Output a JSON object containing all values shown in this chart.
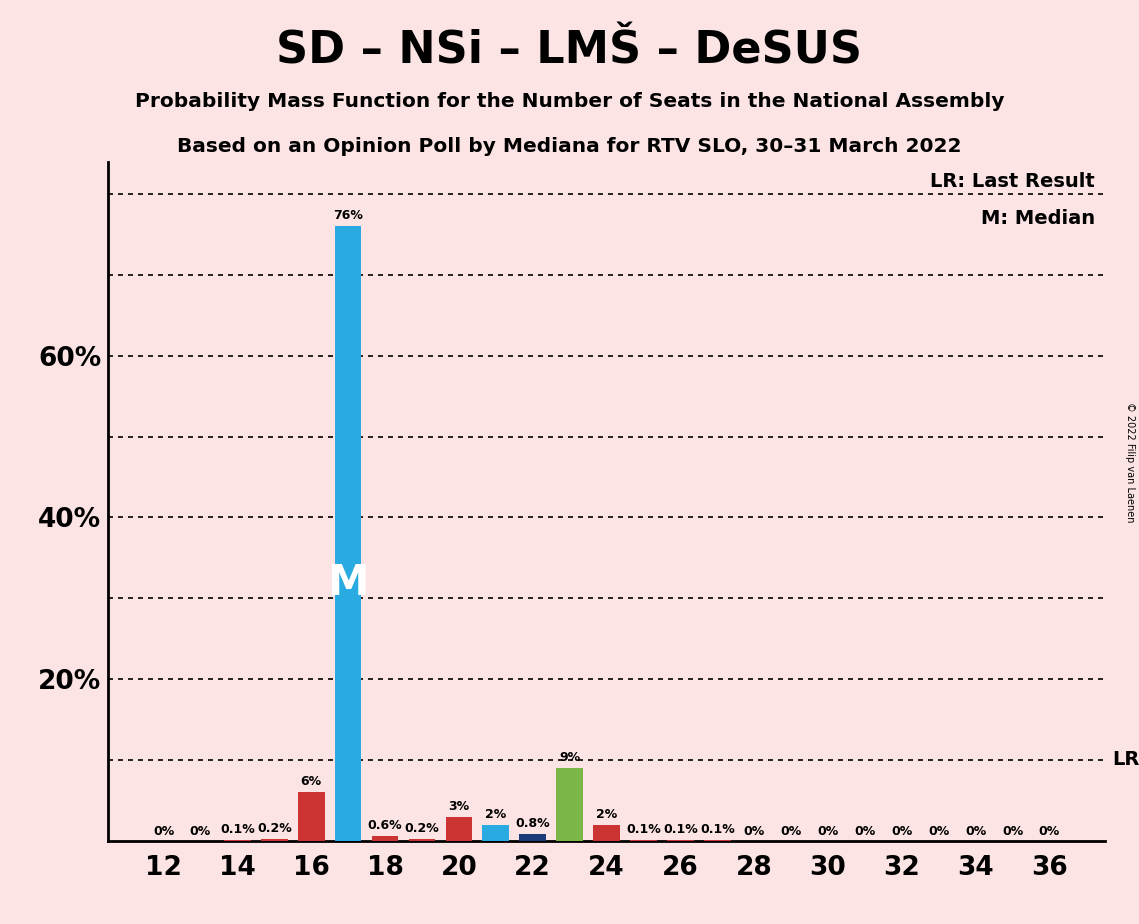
{
  "title": "SD – NSi – LMŠ – DeSUS",
  "subtitle1": "Probability Mass Function for the Number of Seats in the National Assembly",
  "subtitle2": "Based on an Opinion Poll by Mediana for RTV SLO, 30–31 March 2022",
  "background_color": "#fce4e4",
  "seats": [
    12,
    13,
    14,
    15,
    16,
    17,
    18,
    19,
    20,
    21,
    22,
    23,
    24,
    25,
    26,
    27,
    28,
    29,
    30,
    31,
    32,
    33,
    34,
    35,
    36
  ],
  "values": [
    0.0,
    0.0,
    0.1,
    0.2,
    6.0,
    76.0,
    0.6,
    0.2,
    3.0,
    2.0,
    0.8,
    9.0,
    2.0,
    0.1,
    0.1,
    0.1,
    0.0,
    0.0,
    0.0,
    0.0,
    0.0,
    0.0,
    0.0,
    0.0,
    0.0
  ],
  "bar_colors": [
    "#cc3333",
    "#cc3333",
    "#cc3333",
    "#cc3333",
    "#cc3333",
    "#29abe2",
    "#cc3333",
    "#cc3333",
    "#cc3333",
    "#29abe2",
    "#1a3a7a",
    "#7ab648",
    "#cc3333",
    "#cc3333",
    "#cc3333",
    "#cc3333",
    "#cc3333",
    "#cc3333",
    "#cc3333",
    "#cc3333",
    "#cc3333",
    "#cc3333",
    "#cc3333",
    "#cc3333",
    "#cc3333"
  ],
  "labels": [
    "0%",
    "0%",
    "0.1%",
    "0.2%",
    "6%",
    "76%",
    "0.6%",
    "0.2%",
    "3%",
    "2%",
    "0.8%",
    "9%",
    "2%",
    "0.1%",
    "0.1%",
    "0.1%",
    "0%",
    "0%",
    "0%",
    "0%",
    "0%",
    "0%",
    "0%",
    "0%",
    "0%"
  ],
  "median_seat": 17,
  "last_result_y": 10.0,
  "hlines": [
    10,
    20,
    30,
    40,
    50,
    60,
    70,
    80
  ],
  "ytick_shown": [
    20,
    40,
    60
  ],
  "ytick_labels_shown": [
    "20%",
    "40%",
    "60%"
  ],
  "copyright_text": "© 2022 Filip van Laenen",
  "lr_label": "LR: Last Result",
  "m_label": "M: Median",
  "ylim": [
    0,
    84
  ],
  "xlim": [
    10.5,
    37.5
  ]
}
